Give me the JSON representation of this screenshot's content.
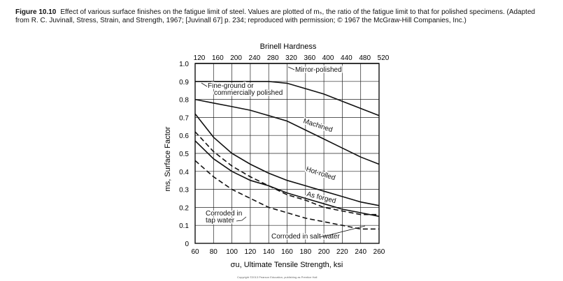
{
  "caption": {
    "label": "Figure 10.10",
    "text": "Effect of various surface finishes on the fatigue limit of steel. Values are plotted of mₛ, the ratio of the fatigue limit to that for polished specimens. (Adapted from R. C. Juvinall, Stress, Strain, and Strength, 1967; [Juvinall 67] p. 234; reproduced with permission; © 1967 the McGraw-Hill Companies, Inc.)"
  },
  "copyright": "Copyright ©2013 Pearson Education, publishing as Prentice Hall",
  "chart_data": {
    "type": "line",
    "title": "Brinell Hardness",
    "xlabel": "σu, Ultimate Tensile Strength, ksi",
    "ylabel": "ms, Surface Factor",
    "xlim": [
      60,
      260
    ],
    "ylim": [
      0,
      1.0
    ],
    "x_ticks": [
      "60",
      "80",
      "100",
      "120",
      "140",
      "160",
      "180",
      "200",
      "220",
      "240",
      "260"
    ],
    "y_ticks": [
      "0",
      "0.1",
      "0.2",
      "0.3",
      "0.4",
      "0.5",
      "0.6",
      "0.7",
      "0.8",
      "0.9",
      "1.0"
    ],
    "top_axis_ticks": [
      "120",
      "160",
      "200",
      "240",
      "280",
      "320",
      "360",
      "400",
      "440",
      "480",
      "520"
    ],
    "grid": true,
    "series": [
      {
        "name": "Mirror-polished",
        "style": "solid",
        "x": [
          60,
          260
        ],
        "y": [
          1.0,
          1.0
        ]
      },
      {
        "name": "Fine-ground or commercially polished",
        "style": "solid",
        "x": [
          60,
          100,
          140,
          160,
          180,
          200,
          220,
          240,
          260
        ],
        "y": [
          0.9,
          0.9,
          0.9,
          0.89,
          0.86,
          0.83,
          0.79,
          0.75,
          0.71
        ]
      },
      {
        "name": "Machined",
        "style": "solid",
        "x": [
          60,
          80,
          100,
          120,
          140,
          160,
          180,
          200,
          220,
          240,
          260
        ],
        "y": [
          0.8,
          0.78,
          0.76,
          0.74,
          0.71,
          0.68,
          0.63,
          0.58,
          0.53,
          0.48,
          0.44
        ]
      },
      {
        "name": "Hot-rolled",
        "style": "solid",
        "x": [
          60,
          80,
          100,
          120,
          140,
          160,
          180,
          200,
          220,
          240,
          260
        ],
        "y": [
          0.72,
          0.59,
          0.5,
          0.44,
          0.39,
          0.35,
          0.32,
          0.29,
          0.26,
          0.23,
          0.21
        ]
      },
      {
        "name": "As forged",
        "style": "solid",
        "x": [
          60,
          80,
          100,
          120,
          140,
          160,
          180,
          200,
          220,
          240,
          260
        ],
        "y": [
          0.57,
          0.47,
          0.4,
          0.35,
          0.32,
          0.28,
          0.25,
          0.22,
          0.19,
          0.17,
          0.15
        ]
      },
      {
        "name": "Corroded in tap water",
        "style": "dashed",
        "x": [
          60,
          80,
          100,
          120,
          140,
          160,
          180,
          200,
          220,
          240,
          260
        ],
        "y": [
          0.62,
          0.51,
          0.43,
          0.37,
          0.32,
          0.27,
          0.24,
          0.2,
          0.18,
          0.16,
          0.16
        ]
      },
      {
        "name": "Corroded in salt water",
        "style": "dashed",
        "x": [
          60,
          80,
          100,
          120,
          140,
          160,
          180,
          200,
          220,
          240,
          260
        ],
        "y": [
          0.46,
          0.37,
          0.3,
          0.25,
          0.2,
          0.17,
          0.14,
          0.12,
          0.1,
          0.08,
          0.08
        ]
      }
    ],
    "annotations": [
      "Mirror-polished",
      "Fine-ground or",
      "commercially polished",
      "Machined",
      "Hot-rolled",
      "As forged",
      "Corroded in",
      "tap water",
      "Corroded in salt water"
    ]
  }
}
